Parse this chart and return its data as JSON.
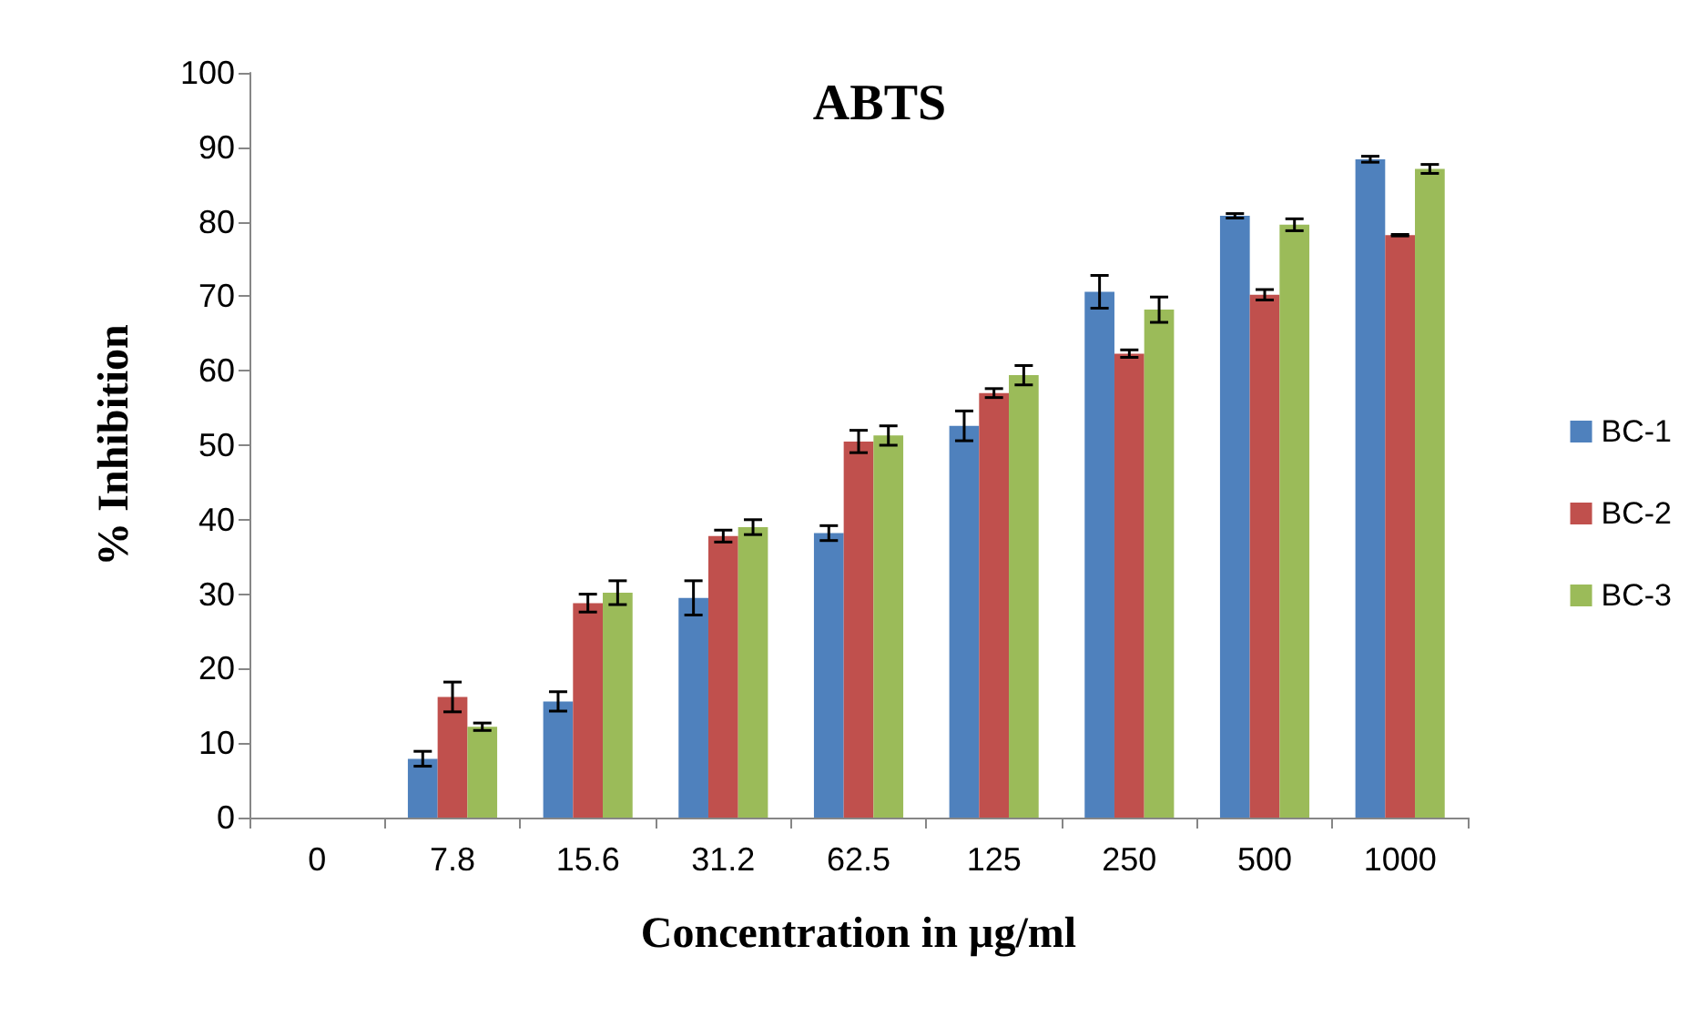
{
  "chart_data": {
    "type": "bar",
    "title": "ABTS",
    "xlabel": "Concentration in µg/ml",
    "ylabel": "% Inhibition",
    "categories": [
      "0",
      "7.8",
      "15.6",
      "31.2",
      "62.5",
      "125",
      "250",
      "500",
      "1000"
    ],
    "series": [
      {
        "name": "BC-1",
        "color": "#4f81bd",
        "values": [
          0,
          7.9,
          15.6,
          29.5,
          38.2,
          52.6,
          70.6,
          80.8,
          88.4
        ],
        "errors": [
          null,
          1.0,
          1.3,
          2.3,
          1.0,
          2.0,
          2.2,
          0.3,
          0.4
        ]
      },
      {
        "name": "BC-2",
        "color": "#c0504d",
        "values": [
          0,
          16.2,
          28.8,
          37.8,
          50.5,
          57.0,
          62.3,
          70.2,
          78.2
        ],
        "errors": [
          null,
          2.0,
          1.2,
          0.8,
          1.5,
          0.6,
          0.5,
          0.7,
          0.1
        ]
      },
      {
        "name": "BC-3",
        "color": "#9bbb59",
        "values": [
          0,
          12.2,
          30.2,
          39.0,
          51.3,
          59.4,
          68.2,
          79.6,
          87.1
        ],
        "errors": [
          null,
          0.5,
          1.6,
          1.0,
          1.3,
          1.3,
          1.7,
          0.8,
          0.6
        ]
      }
    ],
    "ylim": [
      0,
      100
    ],
    "yticks": [
      0,
      10,
      20,
      30,
      40,
      50,
      60,
      70,
      80,
      90,
      100
    ],
    "grid": false,
    "legend": "right"
  }
}
